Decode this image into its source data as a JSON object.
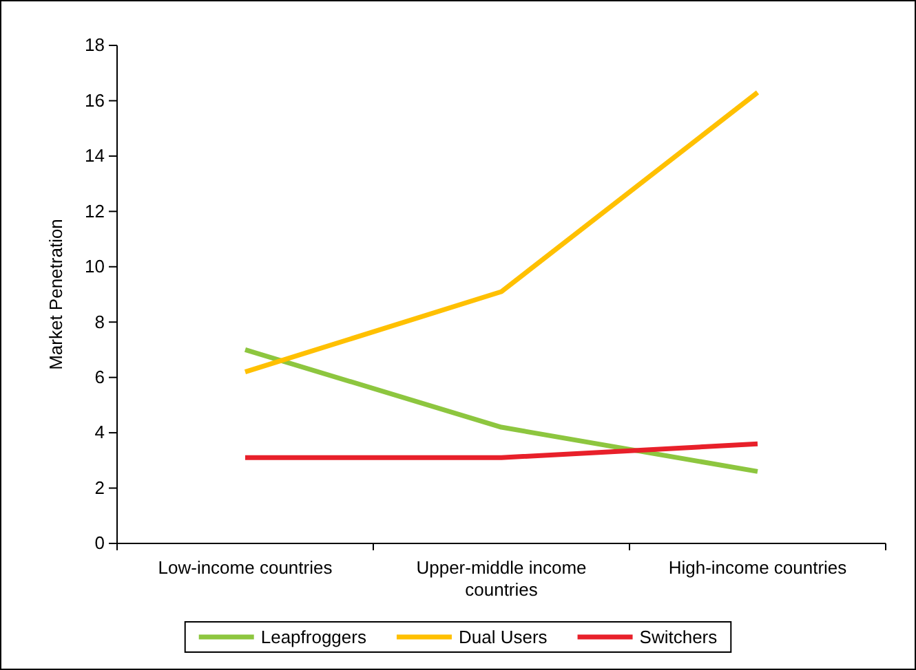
{
  "chart_data": {
    "type": "line",
    "ylabel": "Market Penetration",
    "categories": [
      "Low-income countries",
      "Upper-middle income countries",
      "High-income countries"
    ],
    "series": [
      {
        "name": "Leapfroggers",
        "color": "#8dc63f",
        "values": [
          7.0,
          4.2,
          2.6
        ]
      },
      {
        "name": "Dual Users",
        "color": "#ffc000",
        "values": [
          6.2,
          9.1,
          16.3
        ]
      },
      {
        "name": "Switchers",
        "color": "#e8202a",
        "values": [
          3.1,
          3.1,
          3.6
        ]
      }
    ],
    "ylim": [
      0,
      18
    ],
    "yticks": [
      0,
      2,
      4,
      6,
      8,
      10,
      12,
      14,
      16,
      18
    ],
    "grid": false,
    "legend": "bottom",
    "marker": "none",
    "line_style": "solid"
  }
}
